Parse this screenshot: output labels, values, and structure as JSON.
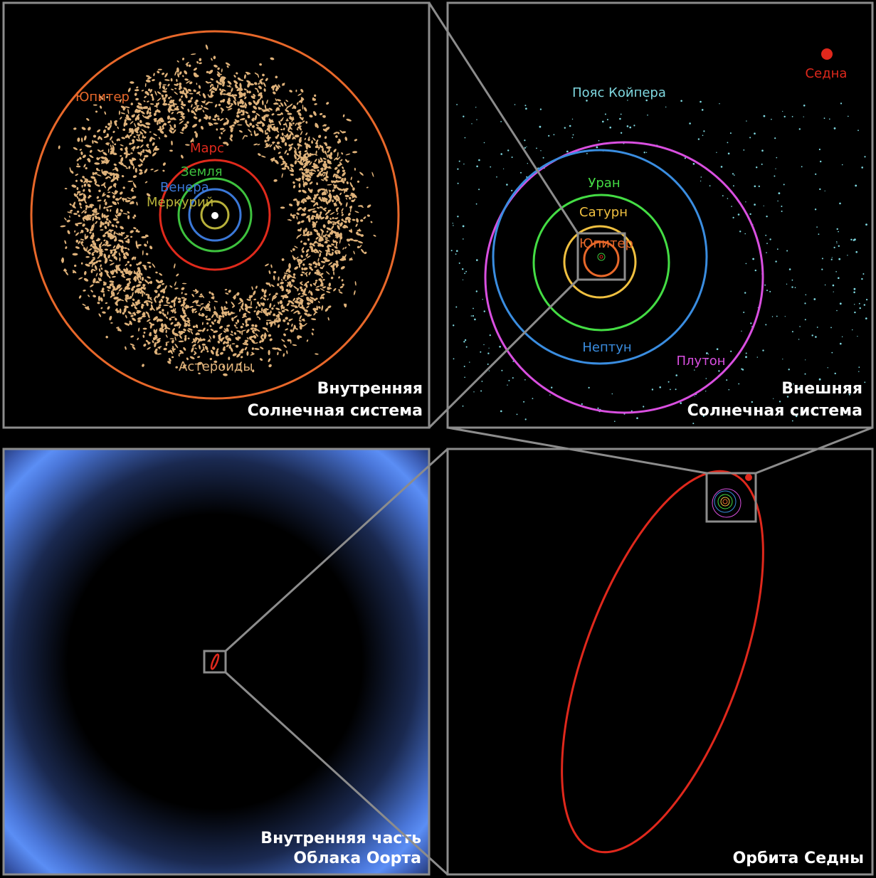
{
  "panels": {
    "inner": {
      "title_line1": "Внутренняя",
      "title_line2": "Солнечная система",
      "labels": {
        "jupiter": "Юпитер",
        "mars": "Марс",
        "earth": "Земля",
        "venus": "Венера",
        "mercury": "Меркурий",
        "asteroids": "Астероиды"
      }
    },
    "outer": {
      "title_line1": "Внешняя",
      "title_line2": "Солнечная система",
      "labels": {
        "sedna": "Седна",
        "kuiper": "Пояс Койпера",
        "uranus": "Уран",
        "saturn": "Сатурн",
        "jupiter": "Юпитер",
        "neptune": "Нептун",
        "pluto": "Плутон"
      }
    },
    "oort": {
      "title_line1": "Внутренняя часть",
      "title_line2": "Облака Оорта"
    },
    "sedna_orbit": {
      "title": "Орбита Седны"
    }
  },
  "colors": {
    "background": "#000000",
    "frame": "#8c8c8c",
    "mercury": "#b8b13a",
    "venus": "#3b78d8",
    "earth": "#3ec23e",
    "mars": "#e02a1c",
    "jupiter": "#e8682a",
    "saturn": "#f0c040",
    "uranus": "#44dd44",
    "neptune": "#3a8de0",
    "pluto": "#d94fe0",
    "sedna": "#e0281c",
    "asteroids": "#dfb27a",
    "kuiper": "#7fd8e0",
    "oort_cloud": "#5a8ef0"
  }
}
